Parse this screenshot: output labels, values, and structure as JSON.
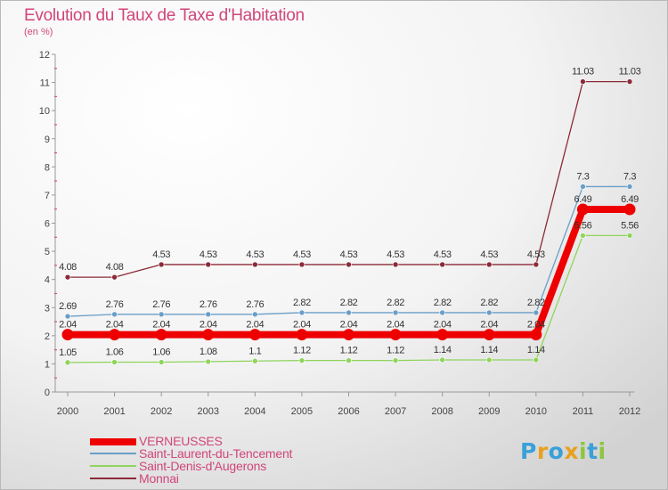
{
  "header": {
    "title": "Evolution du Taux de Taxe d'Habitation",
    "subtitle": "(en %)"
  },
  "logo": {
    "text": "Proxiti",
    "letters": [
      {
        "char": "P",
        "color": "#3aa0d8"
      },
      {
        "char": "r",
        "color": "#e8a020"
      },
      {
        "char": "o",
        "color": "#3aa0d8"
      },
      {
        "char": "x",
        "color": "#e8a020"
      },
      {
        "char": "i",
        "color": "#8cc63f"
      },
      {
        "char": "t",
        "color": "#3aa0d8"
      },
      {
        "char": "i",
        "color": "#8cc63f"
      }
    ]
  },
  "chart_data": {
    "type": "line",
    "title": "Evolution du Taux de Taxe d'Habitation",
    "ylabel": "(en %)",
    "xlabel": "",
    "ylim": [
      0,
      12
    ],
    "yticks": [
      "0",
      "1",
      "2",
      "3",
      "4",
      "5",
      "6",
      "7",
      "8",
      "9",
      "10",
      "11",
      "12"
    ],
    "x": [
      "2000",
      "2001",
      "2002",
      "2003",
      "2004",
      "2005",
      "2006",
      "2007",
      "2008",
      "2009",
      "2010",
      "2011",
      "2012"
    ],
    "series": [
      {
        "name": "Monnai",
        "color": "#8b2a38",
        "values": [
          4.08,
          4.08,
          4.53,
          4.53,
          4.53,
          4.53,
          4.53,
          4.53,
          4.53,
          4.53,
          4.53,
          11.03,
          11.03
        ],
        "labels": [
          "4.08",
          "4.08",
          "4.53",
          "4.53",
          "4.53",
          "4.53",
          "4.53",
          "4.53",
          "4.53",
          "4.53",
          "4.53",
          "11.03",
          "11.03"
        ]
      },
      {
        "name": "Saint-Laurent-du-Tencement",
        "color": "#6a9ec8",
        "values": [
          2.69,
          2.76,
          2.76,
          2.76,
          2.76,
          2.82,
          2.82,
          2.82,
          2.82,
          2.82,
          2.82,
          7.3,
          7.3
        ],
        "labels": [
          "2.69",
          "2.76",
          "2.76",
          "2.76",
          "2.76",
          "2.82",
          "2.82",
          "2.82",
          "2.82",
          "2.82",
          "2.82",
          "7.3",
          "7.3"
        ]
      },
      {
        "name": "Saint-Denis-d'Augerons",
        "color": "#8fd45c",
        "values": [
          1.05,
          1.06,
          1.06,
          1.08,
          1.1,
          1.12,
          1.12,
          1.12,
          1.14,
          1.14,
          1.14,
          5.56,
          5.56
        ],
        "labels": [
          "1.05",
          "1.06",
          "1.06",
          "1.08",
          "1.1",
          "1.12",
          "1.12",
          "1.12",
          "1.14",
          "1.14",
          "1.14",
          "5.56",
          "5.56"
        ]
      },
      {
        "name": "VERNEUSSES",
        "color": "#ee0000",
        "values": [
          2.04,
          2.04,
          2.04,
          2.04,
          2.04,
          2.04,
          2.04,
          2.04,
          2.04,
          2.04,
          2.04,
          6.49,
          6.49
        ],
        "labels": [
          "2.04",
          "2.04",
          "2.04",
          "2.04",
          "2.04",
          "2.04",
          "2.04",
          "2.04",
          "2.04",
          "2.04",
          "2.04",
          "6.49",
          "6.49"
        ]
      }
    ],
    "legend": [
      {
        "name": "VERNEUSSES",
        "color": "#ee0000"
      },
      {
        "name": "Saint-Laurent-du-Tencement",
        "color": "#6a9ec8"
      },
      {
        "name": "Saint-Denis-d'Augerons",
        "color": "#8fd45c"
      },
      {
        "name": "Monnai",
        "color": "#8b2a38"
      }
    ],
    "legend_position": "bottom-left"
  }
}
